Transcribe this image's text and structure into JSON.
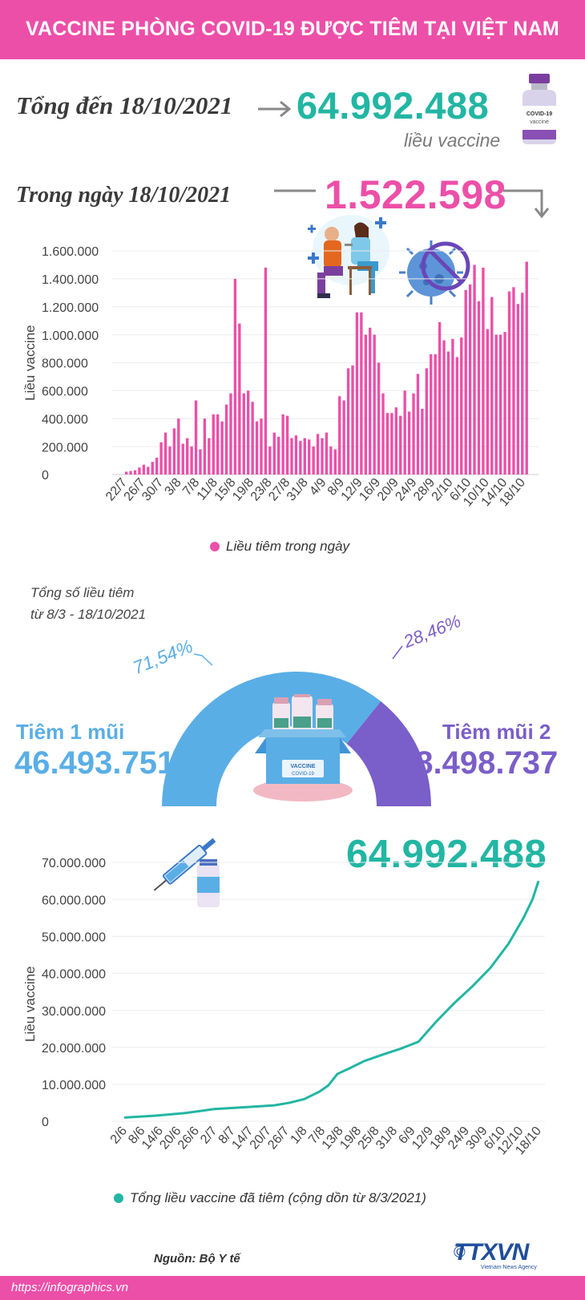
{
  "header": {
    "title": "VACCINE PHÒNG COVID-19 ĐƯỢC TIÊM TẠI VIỆT NAM"
  },
  "summary": {
    "total_label": "Tổng đến 18/10/2021",
    "total_value": "64.992.488",
    "total_unit": "liều vaccine",
    "day_label": "Trong ngày 18/10/2021",
    "day_value": "1.522.598"
  },
  "vial_label": {
    "line1": "COVID-19",
    "line2": "vaccine"
  },
  "box_label": {
    "line1": "VACCINE",
    "line2": "COVID-19"
  },
  "colors": {
    "pink": "#ec4fa8",
    "teal": "#22b6a3",
    "blue": "#5aaee6",
    "purple": "#7a5ec9"
  },
  "chart_data": [
    {
      "type": "bar",
      "ylabel": "Liều vaccine",
      "legend": "Liều tiêm trong ngày",
      "color": "#ec4fa8",
      "ylim": [
        0,
        1600000
      ],
      "yticks": [
        0,
        200000,
        400000,
        600000,
        800000,
        1000000,
        1200000,
        1400000,
        1600000
      ],
      "ytick_labels": [
        "0",
        "200.000",
        "400.000",
        "600.000",
        "800.000",
        "1.000.000",
        "1.200.000",
        "1.400.000",
        "1.600.000"
      ],
      "xtick_labels": [
        "22/7",
        "26/7",
        "30/7",
        "3/8",
        "7/8",
        "11/8",
        "15/8",
        "19/8",
        "23/8",
        "27/8",
        "31/8",
        "4/9",
        "8/9",
        "12/9",
        "16/9",
        "20/9",
        "24/9",
        "28/9",
        "2/10",
        "6/10",
        "10/10",
        "14/10",
        "18/10"
      ],
      "values": [
        20000,
        25000,
        30000,
        50000,
        70000,
        55000,
        90000,
        120000,
        230000,
        300000,
        200000,
        330000,
        400000,
        220000,
        260000,
        200000,
        530000,
        180000,
        400000,
        260000,
        430000,
        430000,
        380000,
        500000,
        580000,
        1400000,
        1080000,
        580000,
        600000,
        520000,
        380000,
        400000,
        1480000,
        200000,
        300000,
        270000,
        430000,
        420000,
        260000,
        280000,
        240000,
        260000,
        250000,
        200000,
        290000,
        260000,
        300000,
        200000,
        180000,
        560000,
        530000,
        760000,
        780000,
        1160000,
        1160000,
        1000000,
        1050000,
        1000000,
        800000,
        580000,
        440000,
        440000,
        480000,
        420000,
        600000,
        450000,
        580000,
        720000,
        470000,
        760000,
        860000,
        860000,
        1090000,
        960000,
        880000,
        970000,
        840000,
        980000,
        1320000,
        1360000,
        1500000,
        1240000,
        1480000,
        1040000,
        1270000,
        1000000,
        1000000,
        1020000,
        1310000,
        1340000,
        1220000,
        1300000,
        1522598
      ]
    },
    {
      "type": "pie",
      "title": "Tổng số liều tiêm từ 8/3 - 18/10/2021",
      "slices": [
        {
          "label": "Tiêm 1 mũi",
          "value": 46493751,
          "value_text": "46.493.751",
          "percent": 71.54,
          "percent_text": "71,54%",
          "color": "#5aaee6"
        },
        {
          "label": "Tiêm mũi 2",
          "value": 18498737,
          "value_text": "18.498.737",
          "percent": 28.46,
          "percent_text": "28,46%",
          "color": "#7a5ec9"
        }
      ]
    },
    {
      "type": "line",
      "ylabel": "Liều vaccine",
      "legend": "Tổng liều vaccine đã tiêm (cộng dồn từ 8/3/2021)",
      "annotation": "64.992.488",
      "color": "#22b6a3",
      "ylim": [
        0,
        70000000
      ],
      "yticks": [
        0,
        10000000,
        20000000,
        30000000,
        40000000,
        50000000,
        60000000,
        70000000
      ],
      "ytick_labels": [
        "0",
        "10.000.000",
        "20.000.000",
        "30.000.000",
        "40.000.000",
        "50.000.000",
        "60.000.000",
        "70.000.000"
      ],
      "xtick_labels": [
        "2/6",
        "8/6",
        "14/6",
        "20/6",
        "26/6",
        "2/7",
        "8/7",
        "14/7",
        "20/7",
        "26/7",
        "1/8",
        "7/8",
        "13/8",
        "19/8",
        "25/8",
        "31/8",
        "6/9",
        "12/9",
        "18/9",
        "24/9",
        "30/9",
        "6/10",
        "12/10",
        "18/10"
      ],
      "x_days": [
        0,
        6,
        12,
        18,
        24,
        30,
        36,
        42,
        48,
        54,
        60,
        66,
        72,
        78,
        84,
        90,
        96,
        102,
        108,
        114,
        120,
        126,
        132,
        138
      ],
      "series": [
        {
          "points": [
            [
              0,
              1000000
            ],
            [
              10,
              1500000
            ],
            [
              20,
              2200000
            ],
            [
              30,
              3300000
            ],
            [
              40,
              3800000
            ],
            [
              50,
              4300000
            ],
            [
              55,
              5000000
            ],
            [
              60,
              6000000
            ],
            [
              65,
              8000000
            ],
            [
              68,
              9700000
            ],
            [
              71,
              12800000
            ],
            [
              75,
              14300000
            ],
            [
              80,
              16300000
            ],
            [
              86,
              18000000
            ],
            [
              92,
              19600000
            ],
            [
              98,
              21500000
            ],
            [
              104,
              27000000
            ],
            [
              110,
              32000000
            ],
            [
              116,
              36500000
            ],
            [
              122,
              41500000
            ],
            [
              128,
              48000000
            ],
            [
              133,
              55000000
            ],
            [
              136,
              60000000
            ],
            [
              138,
              64992488
            ]
          ]
        }
      ]
    }
  ]
}
